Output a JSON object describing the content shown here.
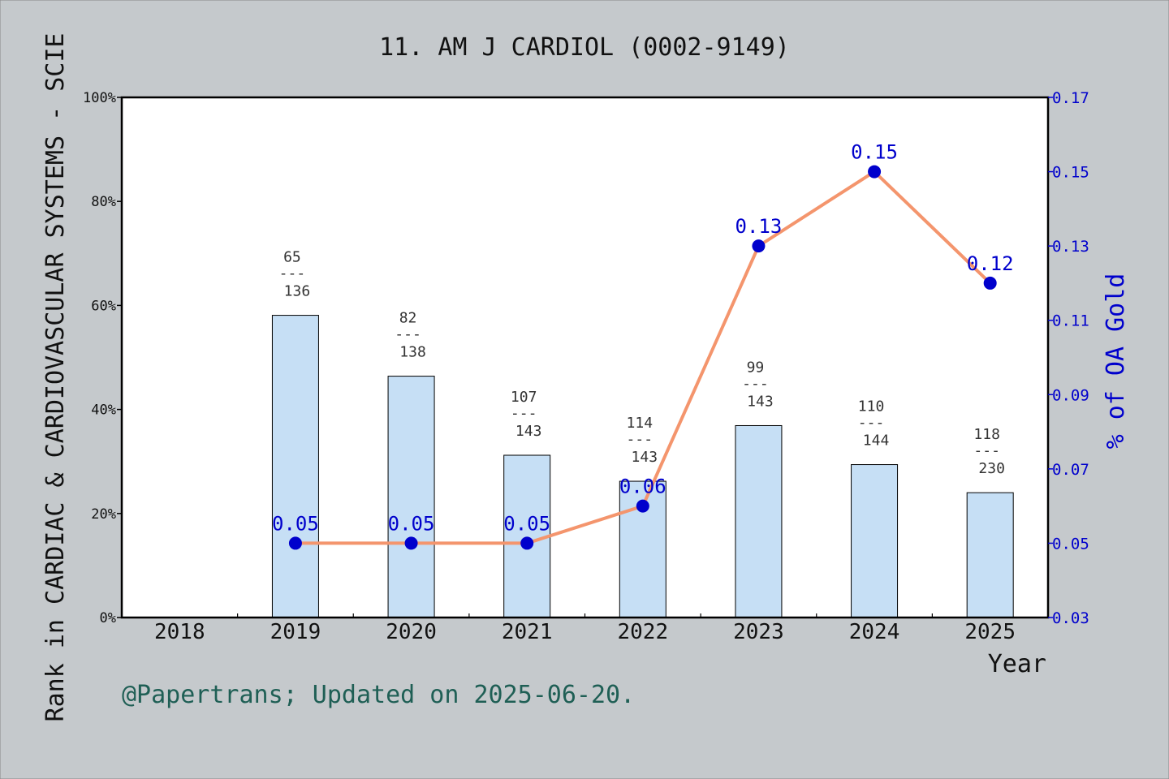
{
  "chart_data": {
    "type": "bar",
    "title": "11. AM J CARDIOL (0002-9149)",
    "xlabel": "Year",
    "ylabel_left": "Rank in CARDIAC & CARDIOVASCULAR SYSTEMS - SCIE",
    "ylabel_right": "% of OA Gold",
    "categories": [
      "2018",
      "2019",
      "2020",
      "2021",
      "2022",
      "2023",
      "2024",
      "2025"
    ],
    "y_left_ticks": [
      "0%",
      "20%",
      "40%",
      "60%",
      "80%",
      "100%"
    ],
    "y_left_range": [
      0,
      100
    ],
    "y_right_ticks": [
      "0.03",
      "0.05",
      "0.07",
      "0.09",
      "0.11",
      "0.13",
      "0.15",
      "0.17"
    ],
    "y_right_range": [
      0.03,
      0.17
    ],
    "series": [
      {
        "type": "bar",
        "axis": "left",
        "color": "#c6dff5",
        "values": [
          null,
          58.1,
          46.4,
          31.2,
          26.2,
          36.9,
          29.4,
          24.0
        ],
        "labels": [
          null,
          {
            "top": "65",
            "sep": "---",
            "bottom": "136"
          },
          {
            "top": "82",
            "sep": "---",
            "bottom": "138"
          },
          {
            "top": "107",
            "sep": "---",
            "bottom": "143"
          },
          {
            "top": "114",
            "sep": "---",
            "bottom": "143"
          },
          {
            "top": "99",
            "sep": "---",
            "bottom": "143"
          },
          {
            "top": "110",
            "sep": "---",
            "bottom": "144"
          },
          {
            "top": "118",
            "sep": "---",
            "bottom": "230"
          }
        ]
      },
      {
        "type": "line",
        "axis": "right",
        "color": "#f4956d",
        "marker_color": "#0000cc",
        "values": [
          null,
          0.05,
          0.05,
          0.05,
          0.06,
          0.13,
          0.15,
          0.12
        ],
        "labels": [
          null,
          "0.05",
          "0.05",
          "0.05",
          "0.06",
          "0.13",
          "0.15",
          "0.12"
        ]
      }
    ],
    "footer": "@Papertrans; Updated on 2025-06-20."
  }
}
